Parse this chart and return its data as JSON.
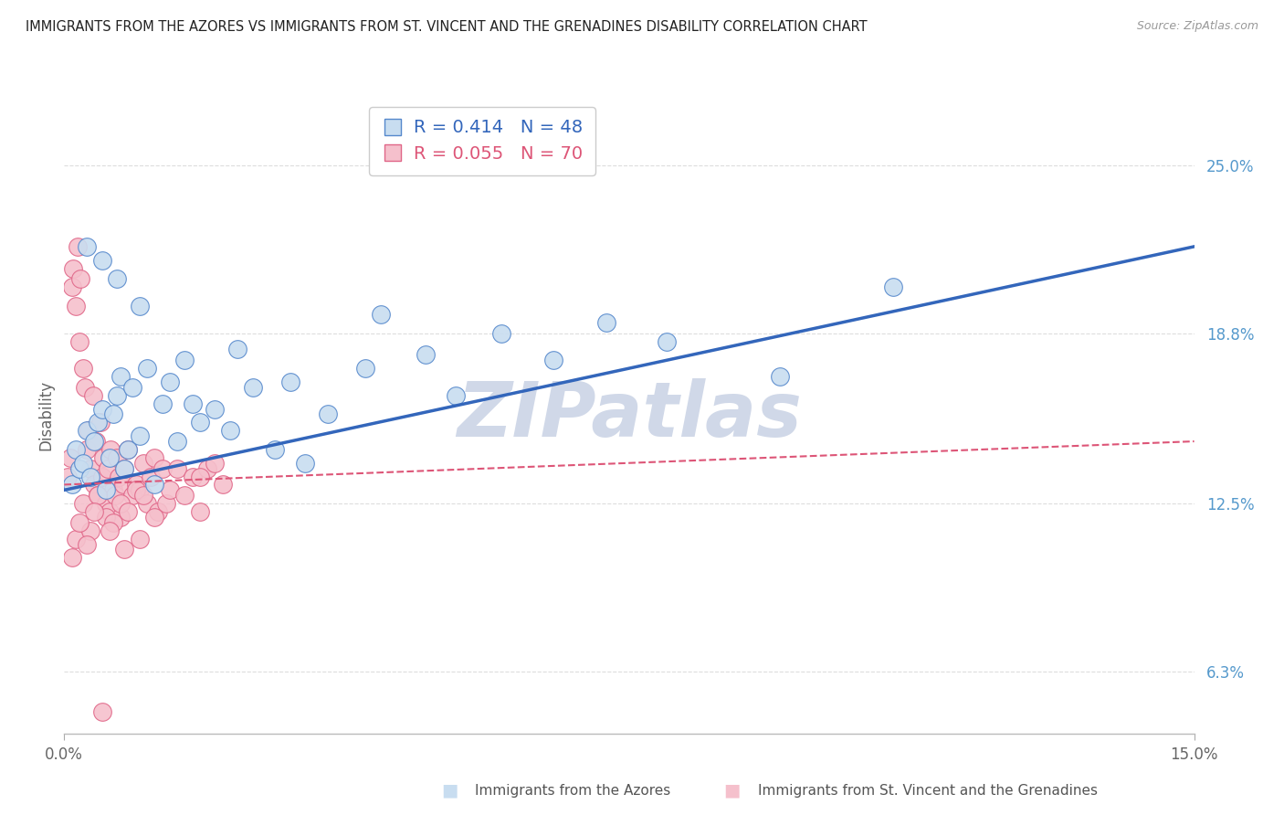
{
  "title": "IMMIGRANTS FROM THE AZORES VS IMMIGRANTS FROM ST. VINCENT AND THE GRENADINES DISABILITY CORRELATION CHART",
  "source": "Source: ZipAtlas.com",
  "ylabel": "Disability",
  "xlim": [
    0,
    15.0
  ],
  "ylim": [
    4.0,
    27.5
  ],
  "ytick_labels": [
    "6.3%",
    "12.5%",
    "18.8%",
    "25.0%"
  ],
  "ytick_values": [
    6.3,
    12.5,
    18.8,
    25.0
  ],
  "xtick_labels": [
    "0.0%",
    "15.0%"
  ],
  "xtick_values": [
    0.0,
    15.0
  ],
  "series1_name": "Immigrants from the Azores",
  "series1_color": "#c8ddf0",
  "series1_edge_color": "#5588cc",
  "series1_R": "0.414",
  "series1_N": "48",
  "series1_line_color": "#3366bb",
  "series2_name": "Immigrants from St. Vincent and the Grenadines",
  "series2_color": "#f5c0cc",
  "series2_edge_color": "#e06688",
  "series2_R": "0.055",
  "series2_N": "70",
  "series2_line_color": "#dd5577",
  "series1_x": [
    0.1,
    0.15,
    0.2,
    0.25,
    0.3,
    0.35,
    0.4,
    0.45,
    0.5,
    0.55,
    0.6,
    0.65,
    0.7,
    0.75,
    0.8,
    0.85,
    0.9,
    1.0,
    1.1,
    1.2,
    1.3,
    1.5,
    1.6,
    1.8,
    2.0,
    2.2,
    2.5,
    2.8,
    3.0,
    3.5,
    4.0,
    4.2,
    4.8,
    5.2,
    5.8,
    6.5,
    7.2,
    8.0,
    9.5,
    11.0,
    0.3,
    0.5,
    0.7,
    1.0,
    1.4,
    1.7,
    2.3,
    3.2
  ],
  "series1_y": [
    13.2,
    14.5,
    13.8,
    14.0,
    15.2,
    13.5,
    14.8,
    15.5,
    16.0,
    13.0,
    14.2,
    15.8,
    16.5,
    17.2,
    13.8,
    14.5,
    16.8,
    15.0,
    17.5,
    13.2,
    16.2,
    14.8,
    17.8,
    15.5,
    16.0,
    15.2,
    16.8,
    14.5,
    17.0,
    15.8,
    17.5,
    19.5,
    18.0,
    16.5,
    18.8,
    17.8,
    19.2,
    18.5,
    17.2,
    20.5,
    22.0,
    21.5,
    20.8,
    19.8,
    17.0,
    16.2,
    18.2,
    14.0
  ],
  "series2_x": [
    0.05,
    0.08,
    0.1,
    0.12,
    0.15,
    0.18,
    0.2,
    0.22,
    0.25,
    0.28,
    0.3,
    0.32,
    0.35,
    0.38,
    0.4,
    0.42,
    0.45,
    0.48,
    0.5,
    0.52,
    0.55,
    0.58,
    0.6,
    0.62,
    0.65,
    0.68,
    0.7,
    0.72,
    0.75,
    0.78,
    0.8,
    0.85,
    0.9,
    0.95,
    1.0,
    1.05,
    1.1,
    1.15,
    1.2,
    1.25,
    1.3,
    1.35,
    1.4,
    1.5,
    1.6,
    1.7,
    1.8,
    1.9,
    2.0,
    2.1,
    0.15,
    0.25,
    0.35,
    0.45,
    0.55,
    0.65,
    0.75,
    0.85,
    0.95,
    1.05,
    0.1,
    0.2,
    0.3,
    0.4,
    0.6,
    0.8,
    1.0,
    1.2,
    1.8,
    0.5
  ],
  "series2_y": [
    13.5,
    14.2,
    20.5,
    21.2,
    19.8,
    22.0,
    18.5,
    20.8,
    17.5,
    16.8,
    14.5,
    15.2,
    13.8,
    16.5,
    13.2,
    14.8,
    12.8,
    15.5,
    13.5,
    14.2,
    12.5,
    13.8,
    12.2,
    14.5,
    13.0,
    12.8,
    14.2,
    13.5,
    12.0,
    13.2,
    13.8,
    14.5,
    12.8,
    13.2,
    13.0,
    14.0,
    12.5,
    13.5,
    14.2,
    12.2,
    13.8,
    12.5,
    13.0,
    13.8,
    12.8,
    13.5,
    12.2,
    13.8,
    14.0,
    13.2,
    11.2,
    12.5,
    11.5,
    12.8,
    12.0,
    11.8,
    12.5,
    12.2,
    13.0,
    12.8,
    10.5,
    11.8,
    11.0,
    12.2,
    11.5,
    10.8,
    11.2,
    12.0,
    13.5,
    4.8
  ],
  "series1_trendline": [
    13.0,
    22.0
  ],
  "series2_trendline": [
    13.2,
    14.8
  ],
  "background_color": "#ffffff",
  "grid_color": "#dddddd",
  "legend_color1": "#3366bb",
  "legend_color2": "#dd5577",
  "watermark": "ZIPatlas",
  "watermark_color": "#d0d8e8"
}
